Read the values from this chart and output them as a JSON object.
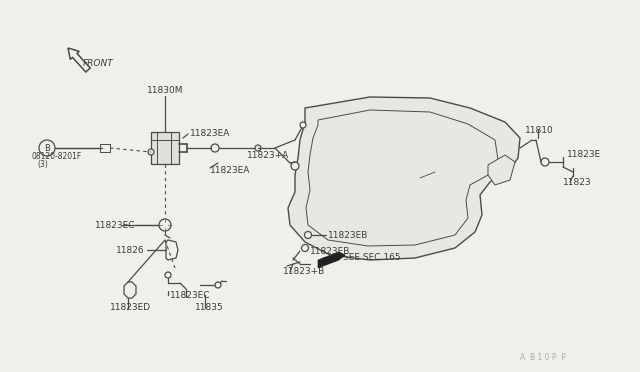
{
  "bg_color": "#f0f0eb",
  "line_color": "#4a4a4a",
  "text_color": "#3a3a3a",
  "watermark": "A  B 1 0 P  P",
  "labels": {
    "front": "FRONT",
    "b_circle": "B",
    "b_part_1": "08120-8201F",
    "b_part_2": "(3)",
    "11830M": "11830M",
    "11823EA_top": "11823EA",
    "11823_plus_A": "11823+A",
    "11823EA_mid": "11823EA",
    "11823EC_left": "11823EC",
    "11826": "11826",
    "11823EC_bot": "11823EC",
    "11823ED": "11823ED",
    "11835": "11835",
    "11823EB_top": "11823EB",
    "11823EB_bot": "11823EB",
    "see_sec": "SEE SEC.165",
    "11823_plus_B": "11823+B",
    "11810": "11810",
    "11823E": "11823E",
    "11823": "11823"
  },
  "fig_width": 6.4,
  "fig_height": 3.72
}
